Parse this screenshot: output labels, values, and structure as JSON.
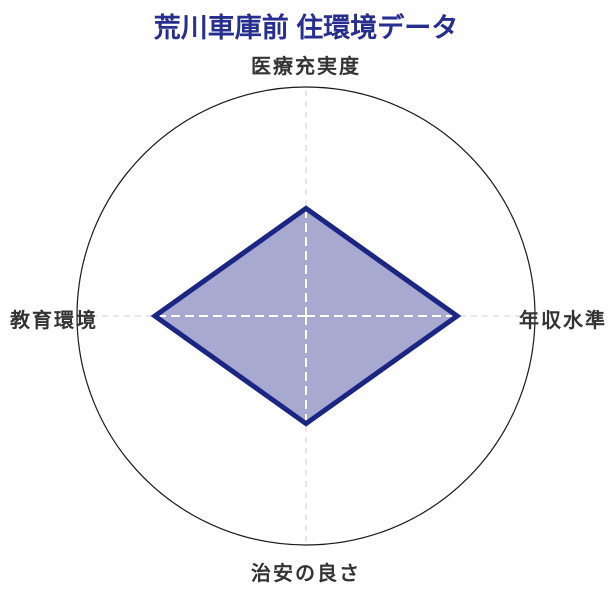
{
  "title": "荒川車庫前 住環境データ",
  "chart_data": {
    "type": "radar",
    "title": "荒川車庫前 住環境データ",
    "categories": [
      "医療充実度",
      "年収水準",
      "治安の良さ",
      "教育環境"
    ],
    "values_fraction_of_max": [
      0.47,
      0.66,
      0.47,
      0.66
    ],
    "rlim": [
      0,
      1
    ],
    "radial_tick_labels_shown": false,
    "start_angle_deg": 90,
    "direction": "clockwise",
    "grid": "dashed axis crosshair, single solid outer circle",
    "legend": "none"
  },
  "colors": {
    "title_text": "#262e8f",
    "series_stroke": "#1b2583",
    "series_fill": "#a7a9d0",
    "axis_grid_dash": "#d9d9d9",
    "inner_axis_dash": "#ffffff",
    "outer_circle": "#1a1a1a",
    "axis_label_text": "#333333",
    "background": "#ffffff"
  }
}
